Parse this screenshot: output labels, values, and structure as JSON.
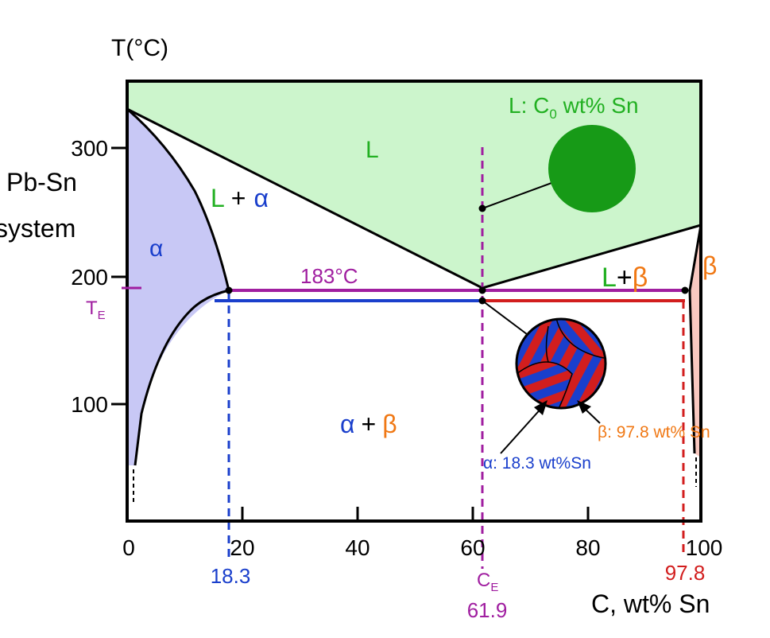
{
  "system_label": [
    "Pb-Sn",
    "system"
  ],
  "axes": {
    "y_title": "T(°C)",
    "x_title": "C, wt% Sn",
    "x_ticks": [
      "0",
      "20",
      "40",
      "60",
      "80",
      "100"
    ],
    "y_ticks": [
      "100",
      "200",
      "300"
    ]
  },
  "eutectic": {
    "temp_label": "183°C",
    "te_main": "T",
    "te_sub": "E",
    "ce_main": "C",
    "ce_sub": "E",
    "ce_value": "61.9",
    "alpha_value": "18.3",
    "beta_value": "97.8"
  },
  "regions": {
    "liquid": "L",
    "l_alpha": {
      "l": "L",
      "plus": "+",
      "phase": "α"
    },
    "l_beta": {
      "l": "L",
      "plus": "+",
      "phase": "β"
    },
    "alpha": "α",
    "beta": "β",
    "alpha_beta": {
      "a": "α",
      "plus": "+",
      "b": "β"
    }
  },
  "annotations": {
    "liquid_main": "L:  C",
    "liquid_sub": "0",
    "liquid_rest": " wt% Sn",
    "alpha_comp": "α: 18.3 wt%Sn",
    "beta_comp": "β: 97.8 wt% Sn"
  },
  "colors": {
    "liquid_fill": "#ccf5cc",
    "alpha_fill": "#c8c8f5",
    "beta_fill": "#f9c8c0",
    "green_text": "#22b022",
    "blue": "#1a3fcc",
    "orange": "#f07814",
    "purple": "#a01ea0",
    "red": "#d21e1e",
    "liquid_circle": "#179a17"
  }
}
